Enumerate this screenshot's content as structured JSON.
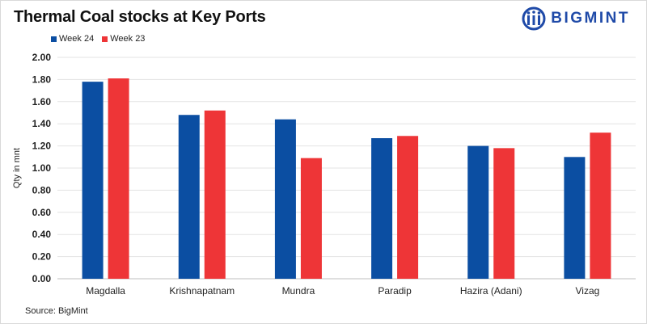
{
  "header": {
    "title": "Thermal Coal stocks at Key Ports",
    "logo_text": "BIGMINT"
  },
  "footer": {
    "source": "Source: BigMint"
  },
  "colors": {
    "week24": "#0b4ea2",
    "week23": "#ee3537",
    "logo": "#1f4aa8"
  },
  "chart_data": {
    "type": "bar",
    "title": "Thermal Coal stocks at Key Ports",
    "xlabel": "",
    "ylabel": "Qty in mnt",
    "ylim": [
      0,
      2.0
    ],
    "yticks": [
      "0.00",
      "0.20",
      "0.40",
      "0.60",
      "0.80",
      "1.00",
      "1.20",
      "1.40",
      "1.60",
      "1.80",
      "2.00"
    ],
    "grid": true,
    "legend_position": "top-left",
    "categories": [
      "Magdalla",
      "Krishnapatnam",
      "Mundra",
      "Paradip",
      "Hazira (Adani)",
      "Vizag"
    ],
    "series": [
      {
        "name": "Week 24",
        "color": "#0b4ea2",
        "values": [
          1.78,
          1.48,
          1.44,
          1.27,
          1.2,
          1.1
        ]
      },
      {
        "name": "Week 23",
        "color": "#ee3537",
        "values": [
          1.81,
          1.52,
          1.09,
          1.29,
          1.18,
          1.32
        ]
      }
    ]
  }
}
